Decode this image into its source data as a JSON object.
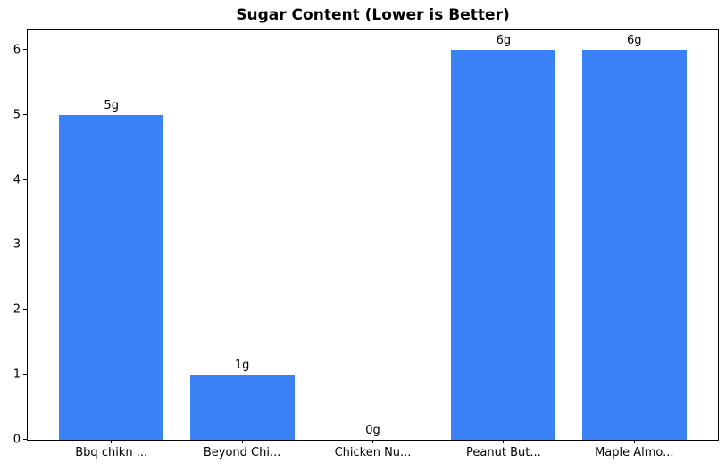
{
  "chart_data": {
    "type": "bar",
    "title": "Sugar Content (Lower is Better)",
    "categories": [
      "Bbq chikn ...",
      "Beyond Chi...",
      "Chicken Nu...",
      "Peanut But...",
      "Maple Almo..."
    ],
    "values": [
      5,
      1,
      0,
      6,
      6
    ],
    "bar_labels": [
      "5g",
      "1g",
      "0g",
      "6g",
      "6g"
    ],
    "xlabel": "",
    "ylabel": "",
    "yticks": [
      0,
      1,
      2,
      3,
      4,
      5,
      6
    ],
    "ylim": [
      0,
      6.3
    ],
    "bar_color": "#3b82f6",
    "grid": false,
    "legend": "none",
    "bar_width_fraction": 0.8,
    "x_edge_padding": 0.64
  }
}
